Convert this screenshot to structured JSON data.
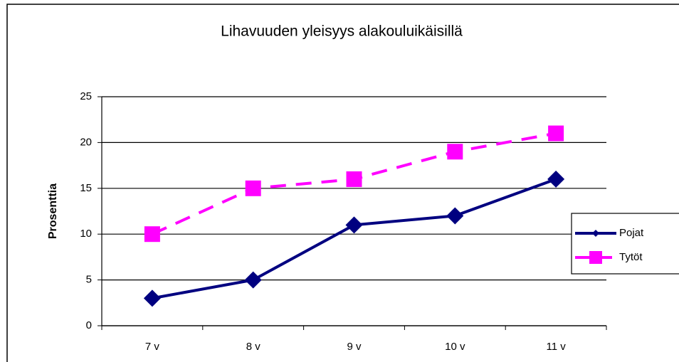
{
  "chart_data": {
    "type": "line",
    "title": "Lihavuuden yleisyys alakouluikäisillä",
    "y_label": "Prosenttia",
    "categories": [
      "7 v",
      "8 v",
      "9 v",
      "10 v",
      "11 v"
    ],
    "series": [
      {
        "name": "Pojat",
        "color": "#000080",
        "marker": "diamond",
        "dash": false,
        "values": [
          3,
          5,
          11,
          12,
          16
        ]
      },
      {
        "name": "Tytöt",
        "color": "#ff00ff",
        "marker": "square",
        "dash": true,
        "values": [
          10,
          15,
          16,
          19,
          21
        ]
      }
    ],
    "ylim": [
      0,
      25
    ],
    "yticks": [
      0,
      5,
      10,
      15,
      20,
      25
    ],
    "grid": true,
    "legend": "right"
  }
}
